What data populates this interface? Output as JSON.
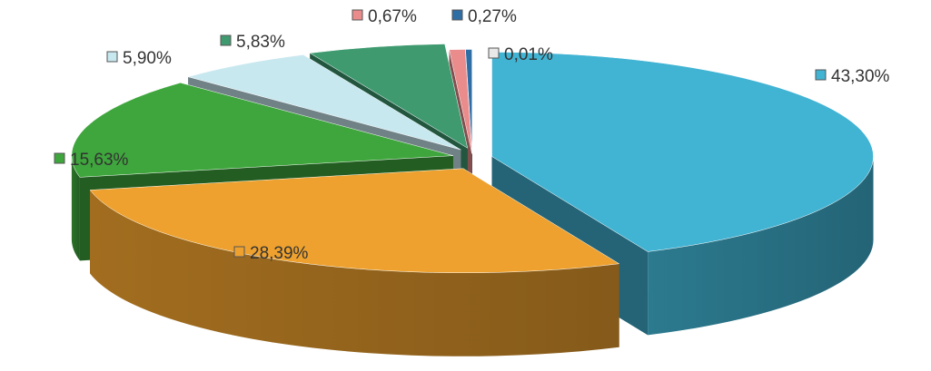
{
  "chart_data": {
    "type": "pie",
    "title": "",
    "series": [
      {
        "values": [
          43.3,
          28.39,
          15.63,
          5.9,
          5.83,
          0.67,
          0.27,
          0.01
        ],
        "labels": [
          "43,30%",
          "28,39%",
          "15,63%",
          "5,90%",
          "5,83%",
          "0,67%",
          "0,27%",
          "0,01%"
        ]
      }
    ],
    "colors": [
      "#41b3d3",
      "#eea12e",
      "#3ea63c",
      "#c8e8ef",
      "#3f9a70",
      "#ea8c8c",
      "#2f6da5",
      "#e8e8e8"
    ],
    "legend": "none"
  }
}
